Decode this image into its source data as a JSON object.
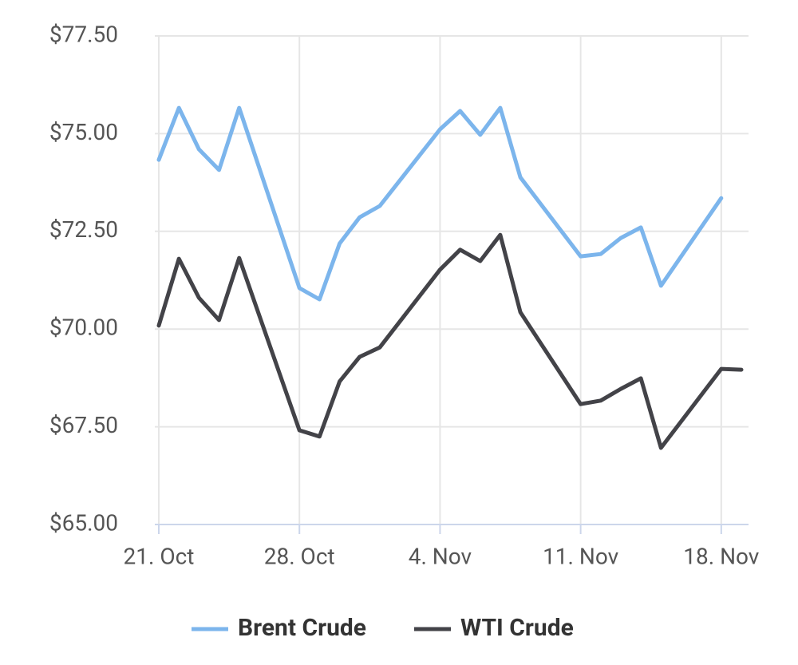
{
  "chart_data": {
    "type": "line",
    "x": [
      "21. Oct",
      "22. Oct",
      "23. Oct",
      "24. Oct",
      "25. Oct",
      "28. Oct",
      "29. Oct",
      "30. Oct",
      "31. Oct",
      "1. Nov",
      "4. Nov",
      "5. Nov",
      "6. Nov",
      "7. Nov",
      "8. Nov",
      "11. Nov",
      "12. Nov",
      "13. Nov",
      "14. Nov",
      "15. Nov",
      "18. Nov",
      "19. Nov"
    ],
    "series": [
      {
        "name": "Brent Crude",
        "color": "#7cb5ec",
        "values": [
          74.33,
          75.66,
          74.6,
          74.07,
          75.66,
          71.05,
          70.76,
          72.19,
          72.86,
          73.15,
          75.11,
          75.58,
          74.97,
          75.66,
          73.88,
          71.86,
          71.92,
          72.33,
          72.6,
          71.11,
          73.35,
          null
        ]
      },
      {
        "name": "WTI Crude",
        "color": "#434348",
        "values": [
          70.09,
          71.8,
          70.8,
          70.23,
          71.82,
          67.41,
          67.25,
          68.66,
          69.29,
          69.53,
          71.52,
          72.03,
          71.74,
          72.41,
          70.43,
          68.08,
          68.17,
          68.47,
          68.74,
          66.96,
          68.98,
          68.96
        ]
      }
    ],
    "xlim": [
      "21. Oct",
      "19. Nov"
    ],
    "xticks": [
      "21. Oct",
      "28. Oct",
      "4. Nov",
      "11. Nov",
      "18. Nov"
    ],
    "ylim": [
      65,
      77.5
    ],
    "yticks": [
      {
        "value": 65,
        "label": "$65.00"
      },
      {
        "value": 67.5,
        "label": "$67.50"
      },
      {
        "value": 70,
        "label": "$70.00"
      },
      {
        "value": 72.5,
        "label": "$72.50"
      },
      {
        "value": 75,
        "label": "$75.00"
      },
      {
        "value": 77.5,
        "label": "$77.50"
      }
    ],
    "grid": true,
    "legend": "bottom"
  }
}
